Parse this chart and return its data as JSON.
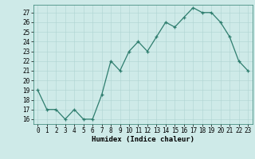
{
  "xlabel": "Humidex (Indice chaleur)",
  "x": [
    0,
    1,
    2,
    3,
    4,
    5,
    6,
    7,
    8,
    9,
    10,
    11,
    12,
    13,
    14,
    15,
    16,
    17,
    18,
    19,
    20,
    21,
    22,
    23
  ],
  "y": [
    19,
    17,
    17,
    16,
    17,
    16,
    16,
    18.5,
    22,
    21,
    23,
    24,
    23,
    24.5,
    26,
    25.5,
    26.5,
    27.5,
    27,
    27,
    26,
    24.5,
    22,
    21
  ],
  "line_color": "#2e7d6e",
  "marker": "+",
  "bg_color": "#ceeae8",
  "grid_color": "#aed4d2",
  "ylim": [
    15.5,
    27.8
  ],
  "xlim": [
    -0.5,
    23.5
  ],
  "yticks": [
    16,
    17,
    18,
    19,
    20,
    21,
    22,
    23,
    24,
    25,
    26,
    27
  ],
  "tick_fontsize": 5.5,
  "xlabel_fontsize": 6.5,
  "spine_color": "#2e7d6e",
  "marker_size": 3.5,
  "lw": 0.9
}
